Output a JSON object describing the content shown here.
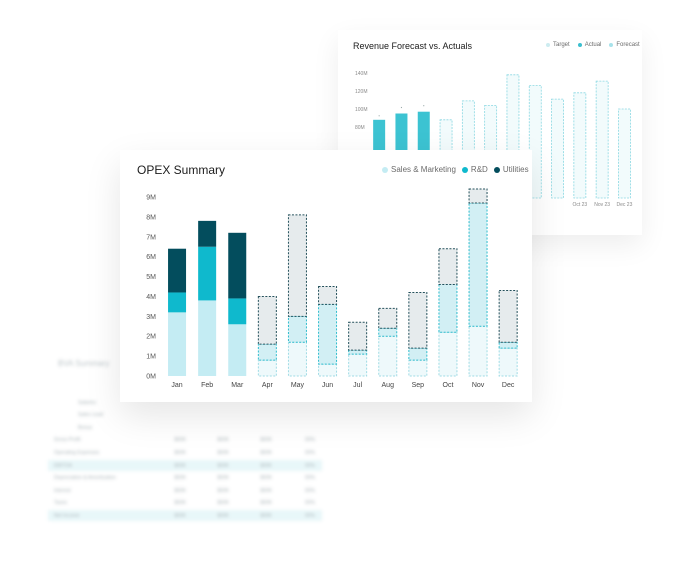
{
  "revenue": {
    "title": "Revenue Forecast vs. Actuals",
    "legend": [
      {
        "label": "Target",
        "color": "#cdecf0"
      },
      {
        "label": "Actual",
        "color": "#3cbfcf"
      },
      {
        "label": "Forecast",
        "color": "#a8e2ea"
      }
    ],
    "y_ticks": [
      "140M",
      "120M",
      "100M",
      "80M"
    ]
  },
  "opex": {
    "title": "OPEX Summary",
    "legend": [
      {
        "label": "Sales & Marketing",
        "color": "#c4ecf3"
      },
      {
        "label": "R&D",
        "color": "#0fb9cd"
      },
      {
        "label": "Utilities",
        "color": "#034d5d"
      }
    ]
  },
  "chart_data": [
    {
      "type": "bar",
      "title": "OPEX Summary",
      "stacked": true,
      "categories": [
        "Jan",
        "Feb",
        "Mar",
        "Apr",
        "May",
        "Jun",
        "Jul",
        "Aug",
        "Sep",
        "Oct",
        "Nov",
        "Dec"
      ],
      "actual_months": 3,
      "series": [
        {
          "name": "Sales & Marketing",
          "values": [
            3.2,
            3.8,
            2.6,
            0.8,
            1.7,
            0.6,
            1.1,
            2.0,
            0.8,
            2.2,
            2.5,
            1.4
          ]
        },
        {
          "name": "R&D",
          "values": [
            1.0,
            2.7,
            1.3,
            0.8,
            1.3,
            3.0,
            0.2,
            0.4,
            0.6,
            2.4,
            6.2,
            0.3
          ]
        },
        {
          "name": "Utilities",
          "values": [
            2.2,
            1.3,
            3.3,
            2.4,
            5.1,
            0.9,
            1.4,
            1.0,
            2.8,
            1.8,
            0.7,
            2.6
          ]
        }
      ],
      "y_ticks": [
        "0M",
        "1M",
        "2M",
        "3M",
        "4M",
        "5M",
        "6M",
        "7M",
        "8M",
        "9M"
      ],
      "ylim": [
        0,
        9
      ]
    },
    {
      "type": "bar",
      "title": "Revenue Forecast vs. Actuals",
      "categories": [
        "Jan",
        "Feb",
        "Mar",
        "Apr",
        "May",
        "Jun",
        "Jul",
        "Aug",
        "Sep",
        "Oct",
        "Nov",
        "Dec"
      ],
      "visible_tick_labels": [
        "Oct 23",
        "Nov 23",
        "Dec 23"
      ],
      "series": [
        {
          "name": "Actual",
          "values": [
            88,
            95,
            97,
            null,
            null,
            null,
            null,
            null,
            null,
            null,
            null,
            null
          ]
        },
        {
          "name": "Forecast",
          "values": [
            null,
            null,
            null,
            88,
            109,
            104,
            138,
            126,
            111,
            118,
            131,
            100
          ]
        }
      ],
      "y_ticks": [
        "80M",
        "100M",
        "120M",
        "140M"
      ],
      "ylim": [
        40,
        150
      ]
    }
  ],
  "bva": {
    "title": "BVA Summary",
    "rows": [
      {
        "label": "Salaries",
        "a": "",
        "b": "",
        "c": "",
        "d": ""
      },
      {
        "label": "Sales Lead",
        "a": "",
        "b": "",
        "c": "",
        "d": ""
      },
      {
        "label": "Bonus",
        "a": "",
        "b": "",
        "c": "",
        "d": ""
      },
      {
        "label": "Gross Profit",
        "a": "$00K",
        "b": "$00K",
        "c": "$00K",
        "d": "00%"
      },
      {
        "label": "Operating Expenses",
        "a": "$00K",
        "b": "$00K",
        "c": "$00K",
        "d": "00%"
      },
      {
        "label": "EBITDA",
        "a": "$00K",
        "b": "$00K",
        "c": "$00K",
        "d": "00%"
      },
      {
        "label": "Depreciation & Amortization",
        "a": "$00K",
        "b": "$00K",
        "c": "$00K",
        "d": "00%"
      },
      {
        "label": "Interest",
        "a": "$00K",
        "b": "$00K",
        "c": "$00K",
        "d": "00%"
      },
      {
        "label": "Taxes",
        "a": "$00K",
        "b": "$00K",
        "c": "$00K",
        "d": "00%"
      },
      {
        "label": "Net Income",
        "a": "$00K",
        "b": "$00K",
        "c": "$00K",
        "d": "00%"
      }
    ]
  }
}
